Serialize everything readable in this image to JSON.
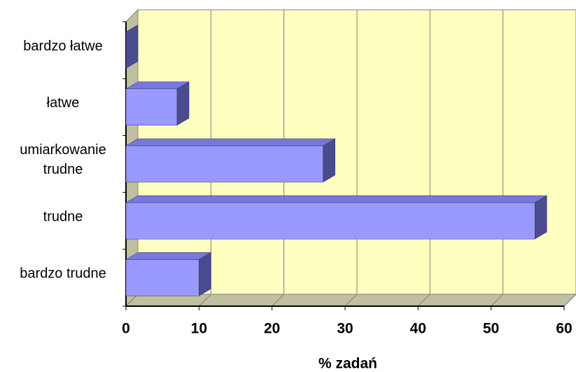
{
  "chart_data": {
    "type": "bar3d_horizontal",
    "categories": [
      "bardzo łatwe",
      "łatwe",
      "umiarkowanie trudne",
      "trudne",
      "bardzo trudne"
    ],
    "values": [
      0,
      7,
      27,
      56,
      10
    ],
    "color": "#9999ff",
    "xlim": [
      0,
      60
    ],
    "xticks": [
      0,
      10,
      20,
      30,
      40,
      50,
      60
    ],
    "x_label": "% zadań",
    "grid": true
  }
}
